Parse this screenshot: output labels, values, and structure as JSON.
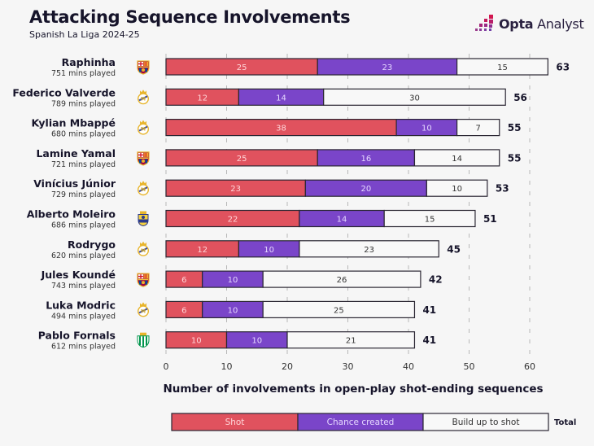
{
  "header": {
    "title": "Attacking Sequence Involvements",
    "subtitle": "Spanish La Liga 2024-25",
    "brand_bold": "Opta",
    "brand_light": " Analyst"
  },
  "chart_data": {
    "type": "bar",
    "orientation": "horizontal",
    "stacked": true,
    "title": "Attacking Sequence Involvements",
    "subtitle": "Spanish La Liga 2024-25",
    "xlabel": "Number of involvements in open-play shot-ending sequences",
    "ylabel": "",
    "xlim": [
      0,
      63
    ],
    "xticks": [
      0,
      10,
      20,
      30,
      40,
      50,
      60
    ],
    "grid": "vertical-dashed",
    "legend_position": "bottom",
    "legend_total_label": "Total",
    "colors": {
      "Shot": "#e0525e",
      "Chance created": "#7a45c9",
      "Build up to shot": "#f8f8f8",
      "outline": "#2a2632"
    },
    "categories": [
      {
        "name": "Raphinha",
        "mins": "751 mins played",
        "club": "barcelona-crest-icon"
      },
      {
        "name": "Federico Valverde",
        "mins": "789 mins played",
        "club": "real-madrid-crest-icon"
      },
      {
        "name": "Kylian Mbappé",
        "mins": "680 mins played",
        "club": "real-madrid-crest-icon"
      },
      {
        "name": "Lamine Yamal",
        "mins": "721 mins played",
        "club": "barcelona-crest-icon"
      },
      {
        "name": "Vinícius Júnior",
        "mins": "729 mins played",
        "club": "real-madrid-crest-icon"
      },
      {
        "name": "Alberto Moleiro",
        "mins": "686 mins played",
        "club": "las-palmas-crest-icon"
      },
      {
        "name": "Rodrygo",
        "mins": "620 mins played",
        "club": "real-madrid-crest-icon"
      },
      {
        "name": "Jules Koundé",
        "mins": "743 mins played",
        "club": "barcelona-crest-icon"
      },
      {
        "name": "Luka Modric",
        "mins": "494 mins played",
        "club": "real-madrid-crest-icon"
      },
      {
        "name": "Pablo Fornals",
        "mins": "612 mins played",
        "club": "real-betis-crest-icon"
      }
    ],
    "series": [
      {
        "name": "Shot",
        "values": [
          25,
          12,
          38,
          25,
          23,
          22,
          12,
          6,
          6,
          10
        ]
      },
      {
        "name": "Chance created",
        "values": [
          23,
          14,
          10,
          16,
          20,
          14,
          10,
          10,
          10,
          10
        ]
      },
      {
        "name": "Build up to shot",
        "values": [
          15,
          30,
          7,
          14,
          10,
          15,
          23,
          26,
          25,
          21
        ]
      }
    ],
    "totals": [
      63,
      56,
      55,
      55,
      53,
      51,
      45,
      42,
      41,
      41
    ]
  }
}
